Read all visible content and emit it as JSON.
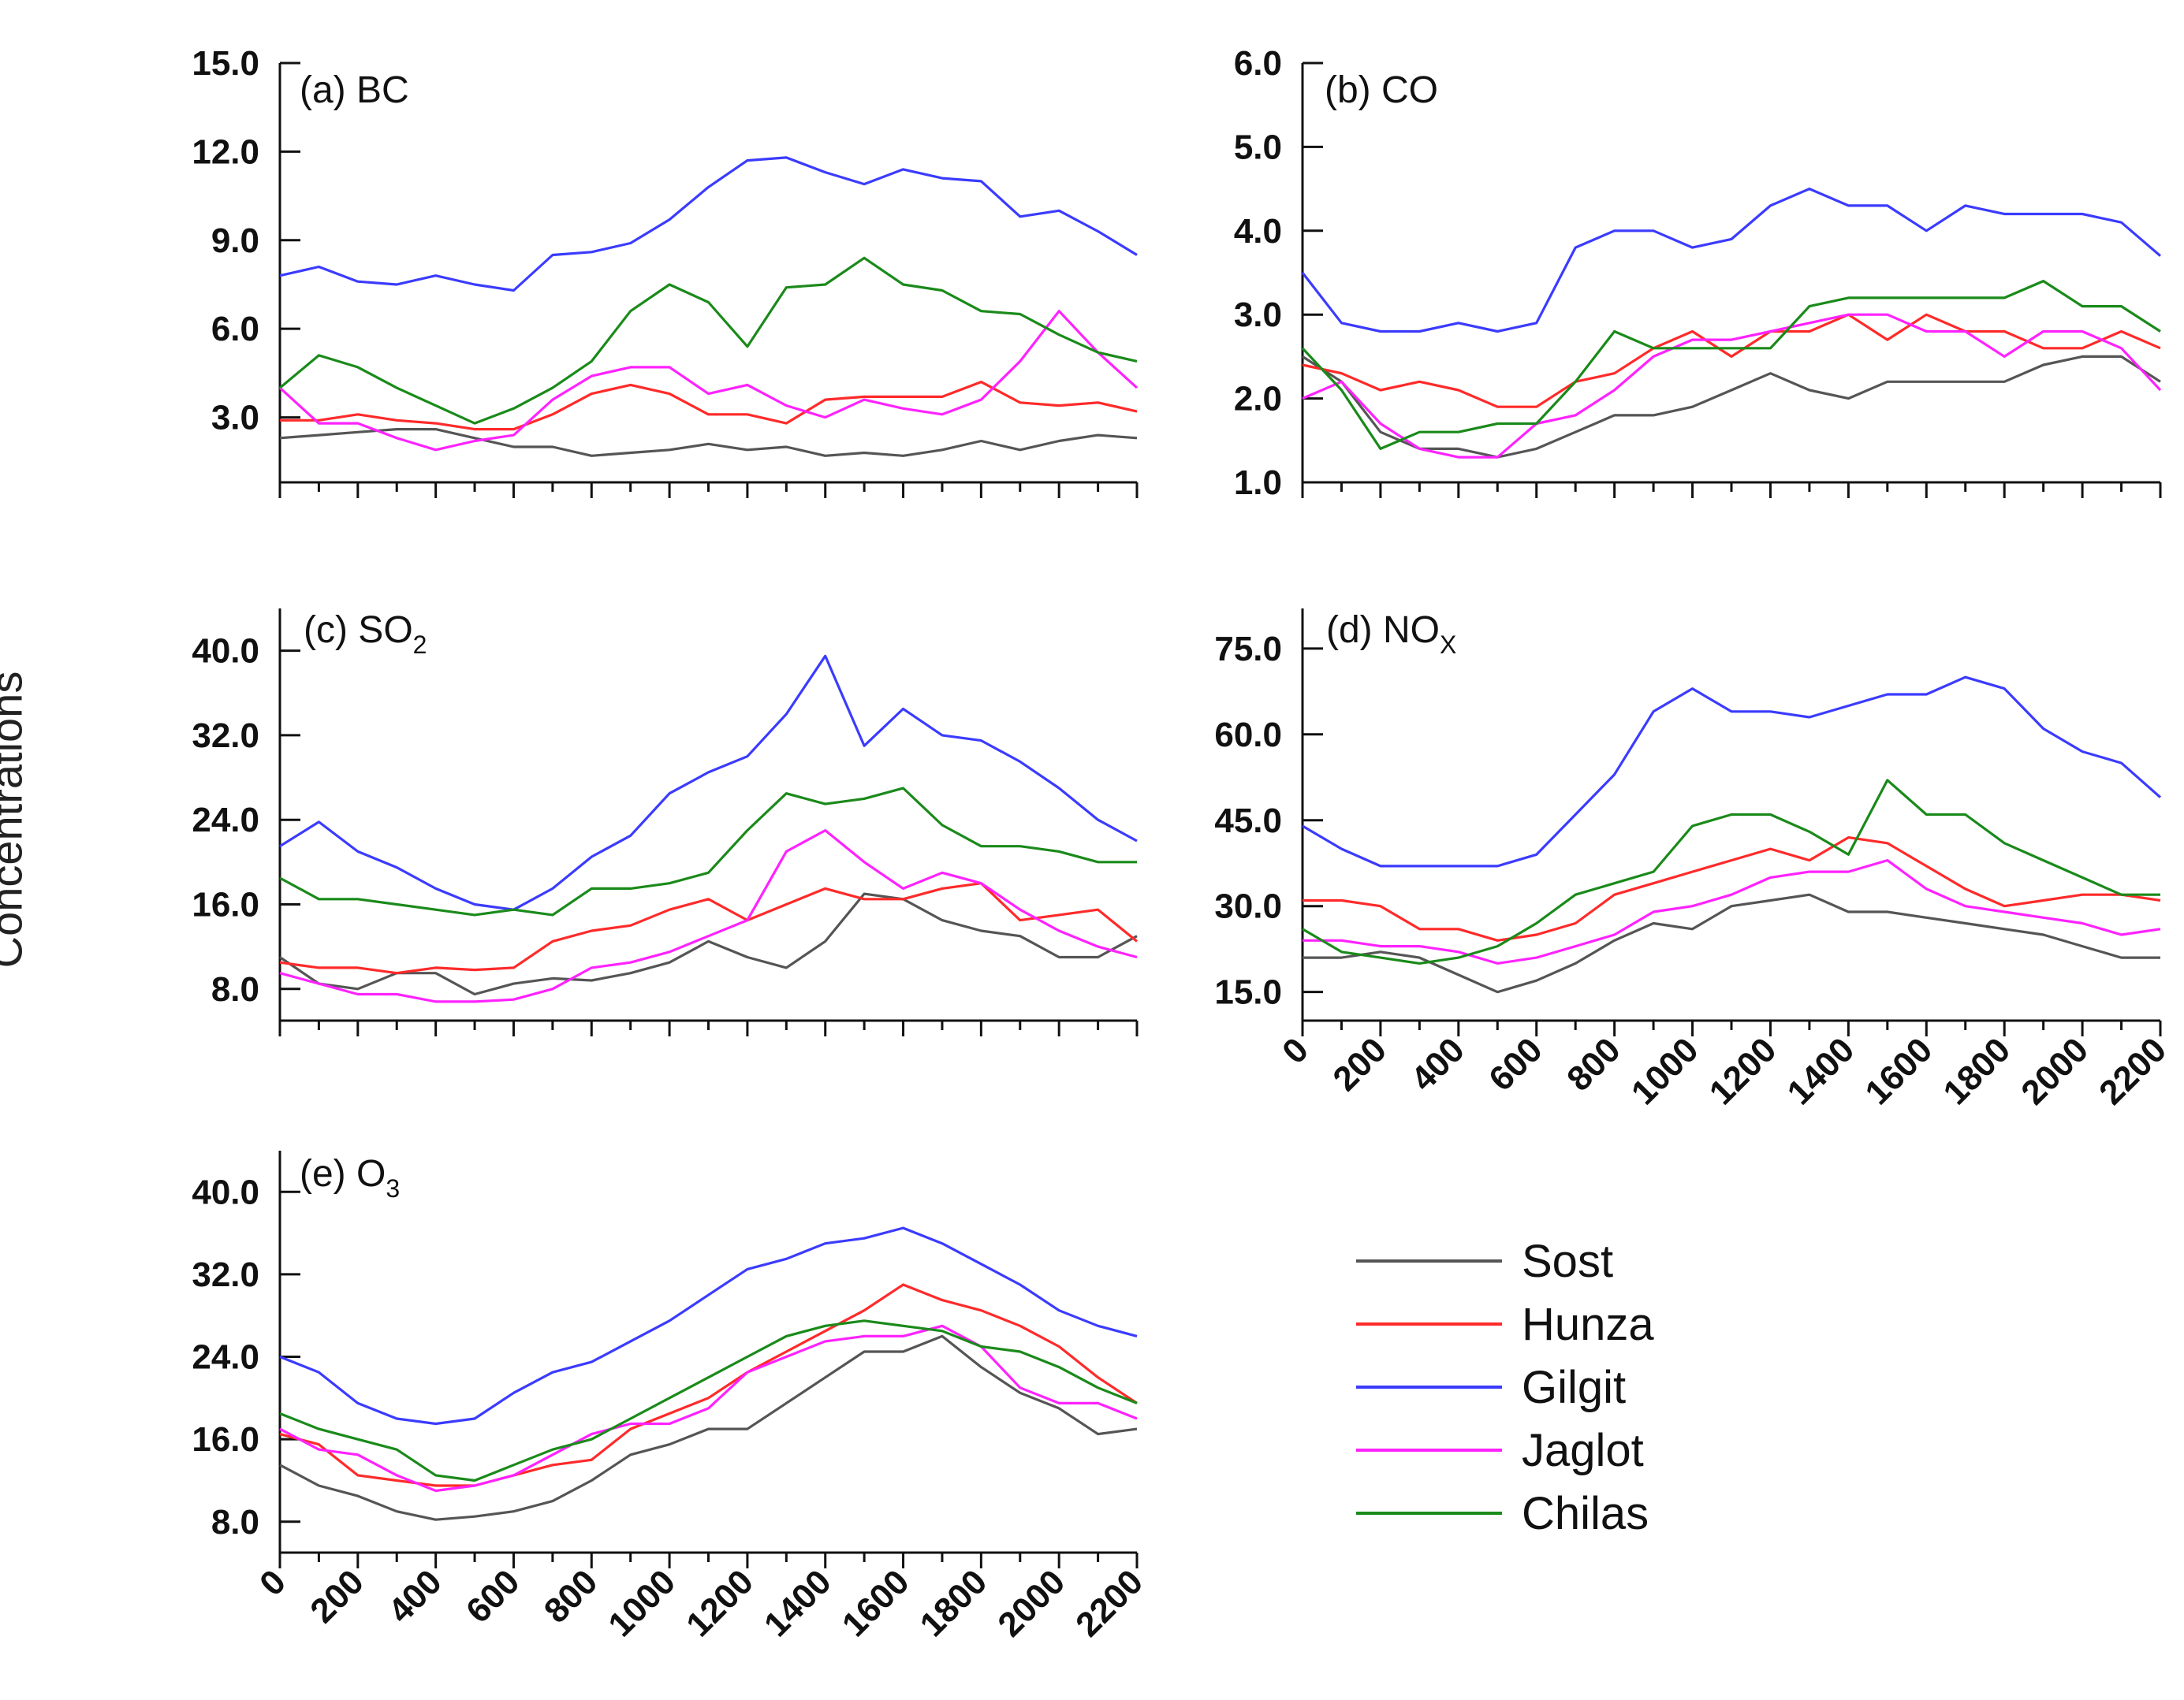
{
  "figure": {
    "ylabel": "Concentrations",
    "colors": {
      "Sost": "#555555",
      "Hunza": "#ff2a2a",
      "Gilgit": "#3b3bff",
      "Jaglot": "#ff22ff",
      "Chilas": "#1a8a1a"
    }
  },
  "legend": {
    "items": [
      {
        "label": "Sost",
        "color": "#555555"
      },
      {
        "label": "Hunza",
        "color": "#ff2a2a"
      },
      {
        "label": "Gilgit",
        "color": "#3b3bff"
      },
      {
        "label": "Jaglot",
        "color": "#ff22ff"
      },
      {
        "label": "Chilas",
        "color": "#1a8a1a"
      }
    ]
  },
  "chart_data": [
    {
      "type": "line",
      "title": "(a) BC",
      "title_main": "(a) BC",
      "title_sub": "",
      "ylabel": "Concentrations",
      "ylim": [
        0.8,
        15.0
      ],
      "yticks": [
        "15.0",
        "12.0",
        "9.0",
        "6.0",
        "3.0"
      ],
      "ytick_values": [
        15.0,
        12.0,
        9.0,
        6.0,
        3.0
      ],
      "show_xticklabels": false,
      "xticks": [],
      "x": [
        0,
        100,
        200,
        300,
        400,
        500,
        600,
        700,
        800,
        900,
        1000,
        1100,
        1200,
        1300,
        1400,
        1500,
        1600,
        1700,
        1800,
        1900,
        2000,
        2100,
        2200
      ],
      "series": [
        {
          "name": "Sost",
          "values": [
            2.3,
            2.4,
            2.5,
            2.6,
            2.6,
            2.3,
            2.0,
            2.0,
            1.7,
            1.8,
            1.9,
            2.1,
            1.9,
            2.0,
            1.7,
            1.8,
            1.7,
            1.9,
            2.2,
            1.9,
            2.2,
            2.4,
            2.3
          ]
        },
        {
          "name": "Hunza",
          "values": [
            2.9,
            2.9,
            3.1,
            2.9,
            2.8,
            2.6,
            2.6,
            3.1,
            3.8,
            4.1,
            3.8,
            3.1,
            3.1,
            2.8,
            3.6,
            3.7,
            3.7,
            3.7,
            4.2,
            3.5,
            3.4,
            3.5,
            3.2
          ]
        },
        {
          "name": "Gilgit",
          "values": [
            7.8,
            8.1,
            7.6,
            7.5,
            7.8,
            7.5,
            7.3,
            8.5,
            8.6,
            8.9,
            9.7,
            10.8,
            11.7,
            11.8,
            11.3,
            10.9,
            11.4,
            11.1,
            11.0,
            9.8,
            10.0,
            9.3,
            8.5
          ]
        },
        {
          "name": "Jaglot",
          "values": [
            4.0,
            2.8,
            2.8,
            2.3,
            1.9,
            2.2,
            2.4,
            3.6,
            4.4,
            4.7,
            4.7,
            3.8,
            4.1,
            3.4,
            3.0,
            3.6,
            3.3,
            3.1,
            3.6,
            4.9,
            6.6,
            5.2,
            4.0
          ]
        },
        {
          "name": "Chilas",
          "values": [
            4.0,
            5.1,
            4.7,
            4.0,
            3.4,
            2.8,
            3.3,
            4.0,
            4.9,
            6.6,
            7.5,
            6.9,
            5.4,
            7.4,
            7.5,
            8.4,
            7.5,
            7.3,
            6.6,
            6.5,
            5.8,
            5.2,
            4.9
          ]
        }
      ]
    },
    {
      "type": "line",
      "title": "(b) CO",
      "title_main": "(b) CO",
      "title_sub": "",
      "ylim": [
        1.0,
        6.0
      ],
      "yticks": [
        "6.0",
        "5.0",
        "4.0",
        "3.0",
        "2.0",
        "1.0"
      ],
      "ytick_values": [
        6.0,
        5.0,
        4.0,
        3.0,
        2.0,
        1.0
      ],
      "show_xticklabels": false,
      "xticks": [],
      "x": [
        0,
        100,
        200,
        300,
        400,
        500,
        600,
        700,
        800,
        900,
        1000,
        1100,
        1200,
        1300,
        1400,
        1500,
        1600,
        1700,
        1800,
        1900,
        2000,
        2100,
        2200
      ],
      "series": [
        {
          "name": "Sost",
          "values": [
            2.5,
            2.2,
            1.6,
            1.4,
            1.4,
            1.3,
            1.4,
            1.6,
            1.8,
            1.8,
            1.9,
            2.1,
            2.3,
            2.1,
            2.0,
            2.2,
            2.2,
            2.2,
            2.2,
            2.4,
            2.5,
            2.5,
            2.2
          ]
        },
        {
          "name": "Hunza",
          "values": [
            2.4,
            2.3,
            2.1,
            2.2,
            2.1,
            1.9,
            1.9,
            2.2,
            2.3,
            2.6,
            2.8,
            2.5,
            2.8,
            2.8,
            3.0,
            2.7,
            3.0,
            2.8,
            2.8,
            2.6,
            2.6,
            2.8,
            2.6
          ]
        },
        {
          "name": "Gilgit",
          "values": [
            3.5,
            2.9,
            2.8,
            2.8,
            2.9,
            2.8,
            2.9,
            3.8,
            4.0,
            4.0,
            3.8,
            3.9,
            4.3,
            4.5,
            4.3,
            4.3,
            4.0,
            4.3,
            4.2,
            4.2,
            4.2,
            4.1,
            3.7
          ]
        },
        {
          "name": "Jaglot",
          "values": [
            2.0,
            2.2,
            1.7,
            1.4,
            1.3,
            1.3,
            1.7,
            1.8,
            2.1,
            2.5,
            2.7,
            2.7,
            2.8,
            2.9,
            3.0,
            3.0,
            2.8,
            2.8,
            2.5,
            2.8,
            2.8,
            2.6,
            2.1
          ]
        },
        {
          "name": "Chilas",
          "values": [
            2.6,
            2.1,
            1.4,
            1.6,
            1.6,
            1.7,
            1.7,
            2.2,
            2.8,
            2.6,
            2.6,
            2.6,
            2.6,
            3.1,
            3.2,
            3.2,
            3.2,
            3.2,
            3.2,
            3.4,
            3.1,
            3.1,
            2.8
          ]
        }
      ]
    },
    {
      "type": "line",
      "title": "(c) SO2",
      "title_main": "(c) SO",
      "title_sub": "2",
      "ylim": [
        5.0,
        44.0
      ],
      "yticks": [
        "40.0",
        "32.0",
        "24.0",
        "16.0",
        "8.0"
      ],
      "ytick_values": [
        40.0,
        32.0,
        24.0,
        16.0,
        8.0
      ],
      "show_xticklabels": false,
      "xticks": [],
      "x": [
        0,
        100,
        200,
        300,
        400,
        500,
        600,
        700,
        800,
        900,
        1000,
        1100,
        1200,
        1300,
        1400,
        1500,
        1600,
        1700,
        1800,
        1900,
        2000,
        2100,
        2200
      ],
      "series": [
        {
          "name": "Sost",
          "values": [
            11.0,
            8.5,
            8.0,
            9.5,
            9.5,
            7.5,
            8.5,
            9.0,
            8.8,
            9.5,
            10.5,
            12.5,
            11.0,
            10.0,
            12.5,
            17.0,
            16.5,
            14.5,
            13.5,
            13.0,
            11.0,
            11.0,
            13.0
          ]
        },
        {
          "name": "Hunza",
          "values": [
            10.5,
            10.0,
            10.0,
            9.5,
            10.0,
            9.8,
            10.0,
            12.5,
            13.5,
            14.0,
            15.5,
            16.5,
            14.5,
            16.0,
            17.5,
            16.5,
            16.5,
            17.5,
            18.0,
            14.5,
            15.0,
            15.5,
            12.5
          ]
        },
        {
          "name": "Gilgit",
          "values": [
            21.5,
            23.8,
            21.0,
            19.5,
            17.5,
            16.0,
            15.5,
            17.5,
            20.5,
            22.5,
            26.5,
            28.5,
            30.0,
            34.0,
            39.5,
            31.0,
            34.5,
            32.0,
            31.5,
            29.5,
            27.0,
            24.0,
            22.0
          ]
        },
        {
          "name": "Jaglot",
          "values": [
            9.5,
            8.5,
            7.5,
            7.5,
            6.8,
            6.8,
            7.0,
            8.0,
            10.0,
            10.5,
            11.5,
            13.0,
            14.5,
            21.0,
            23.0,
            20.0,
            17.5,
            19.0,
            18.0,
            15.5,
            13.5,
            12.0,
            11.0
          ]
        },
        {
          "name": "Chilas",
          "values": [
            18.5,
            16.5,
            16.5,
            16.0,
            15.5,
            15.0,
            15.5,
            15.0,
            17.5,
            17.5,
            18.0,
            19.0,
            23.0,
            26.5,
            25.5,
            26.0,
            27.0,
            23.5,
            21.5,
            21.5,
            21.0,
            20.0,
            20.0
          ]
        }
      ]
    },
    {
      "type": "line",
      "title": "(d) NOX",
      "title_main": "(d) NO",
      "title_sub": "X",
      "ylim": [
        10.0,
        82.0
      ],
      "yticks": [
        "75.0",
        "60.0",
        "45.0",
        "30.0",
        "15.0"
      ],
      "ytick_values": [
        75.0,
        60.0,
        45.0,
        30.0,
        15.0
      ],
      "show_xticklabels": true,
      "xticks": [
        "0",
        "200",
        "400",
        "600",
        "800",
        "1000",
        "1200",
        "1400",
        "1600",
        "1800",
        "2000",
        "2200"
      ],
      "xtick_values": [
        0,
        200,
        400,
        600,
        800,
        1000,
        1200,
        1400,
        1600,
        1800,
        2000,
        2200
      ],
      "x": [
        0,
        100,
        200,
        300,
        400,
        500,
        600,
        700,
        800,
        900,
        1000,
        1100,
        1200,
        1300,
        1400,
        1500,
        1600,
        1700,
        1800,
        1900,
        2000,
        2100,
        2200
      ],
      "series": [
        {
          "name": "Sost",
          "values": [
            21,
            21,
            22,
            21,
            18,
            15,
            17,
            20,
            24,
            27,
            26,
            30,
            31,
            32,
            29,
            29,
            28,
            27,
            26,
            25,
            23,
            21,
            21
          ]
        },
        {
          "name": "Hunza",
          "values": [
            31,
            31,
            30,
            26,
            26,
            24,
            25,
            27,
            32,
            34,
            36,
            38,
            40,
            38,
            42,
            41,
            37,
            33,
            30,
            31,
            32,
            32,
            31
          ]
        },
        {
          "name": "Gilgit",
          "values": [
            44,
            40,
            37,
            37,
            37,
            37,
            39,
            46,
            53,
            64,
            68,
            64,
            64,
            63,
            65,
            67,
            67,
            70,
            68,
            61,
            57,
            55,
            49
          ]
        },
        {
          "name": "Jaglot",
          "values": [
            24,
            24,
            23,
            23,
            22,
            20,
            21,
            23,
            25,
            29,
            30,
            32,
            35,
            36,
            36,
            38,
            33,
            30,
            29,
            28,
            27,
            25,
            26
          ]
        },
        {
          "name": "Chilas",
          "values": [
            26,
            22,
            21,
            20,
            21,
            23,
            27,
            32,
            34,
            36,
            44,
            46,
            46,
            43,
            39,
            52,
            46,
            46,
            41,
            38,
            35,
            32,
            32
          ]
        }
      ]
    },
    {
      "type": "line",
      "title": "(e) O3",
      "title_main": "(e) O",
      "title_sub": "3",
      "ylim": [
        5.0,
        44.0
      ],
      "yticks": [
        "40.0",
        "32.0",
        "24.0",
        "16.0",
        "8.0"
      ],
      "ytick_values": [
        40.0,
        32.0,
        24.0,
        16.0,
        8.0
      ],
      "show_xticklabels": true,
      "xticks": [
        "0",
        "200",
        "400",
        "600",
        "800",
        "1000",
        "1200",
        "1400",
        "1600",
        "1800",
        "2000",
        "2200"
      ],
      "xtick_values": [
        0,
        200,
        400,
        600,
        800,
        1000,
        1200,
        1400,
        1600,
        1800,
        2000,
        2200
      ],
      "x": [
        0,
        100,
        200,
        300,
        400,
        500,
        600,
        700,
        800,
        900,
        1000,
        1100,
        1200,
        1300,
        1400,
        1500,
        1600,
        1700,
        1800,
        1900,
        2000,
        2100,
        2200
      ],
      "series": [
        {
          "name": "Sost",
          "values": [
            13.5,
            11.5,
            10.5,
            9.0,
            8.2,
            8.5,
            9.0,
            10.0,
            12.0,
            14.5,
            15.5,
            17.0,
            17.0,
            19.5,
            22.0,
            24.5,
            24.5,
            26.0,
            23.0,
            20.5,
            19.0,
            16.5,
            17.0
          ]
        },
        {
          "name": "Hunza",
          "values": [
            16.5,
            15.5,
            12.5,
            12.0,
            11.5,
            11.5,
            12.5,
            13.5,
            14.0,
            17.0,
            18.5,
            20.0,
            22.5,
            24.5,
            26.5,
            28.5,
            31.0,
            29.5,
            28.5,
            27.0,
            25.0,
            22.0,
            19.5
          ]
        },
        {
          "name": "Gilgit",
          "values": [
            24.0,
            22.5,
            19.5,
            18.0,
            17.5,
            18.0,
            20.5,
            22.5,
            23.5,
            25.5,
            27.5,
            30.0,
            32.5,
            33.5,
            35.0,
            35.5,
            36.5,
            35.0,
            33.0,
            31.0,
            28.5,
            27.0,
            26.0
          ]
        },
        {
          "name": "Jaglot",
          "values": [
            17.0,
            15.0,
            14.5,
            12.5,
            11.0,
            11.5,
            12.5,
            14.5,
            16.5,
            17.5,
            17.5,
            19.0,
            22.5,
            24.0,
            25.5,
            26.0,
            26.0,
            27.0,
            25.0,
            21.0,
            19.5,
            19.5,
            18.0
          ]
        },
        {
          "name": "Chilas",
          "values": [
            18.5,
            17.0,
            16.0,
            15.0,
            12.5,
            12.0,
            13.5,
            15.0,
            16.0,
            18.0,
            20.0,
            22.0,
            24.0,
            26.0,
            27.0,
            27.5,
            27.0,
            26.5,
            25.0,
            24.5,
            23.0,
            21.0,
            19.5
          ]
        }
      ]
    }
  ]
}
